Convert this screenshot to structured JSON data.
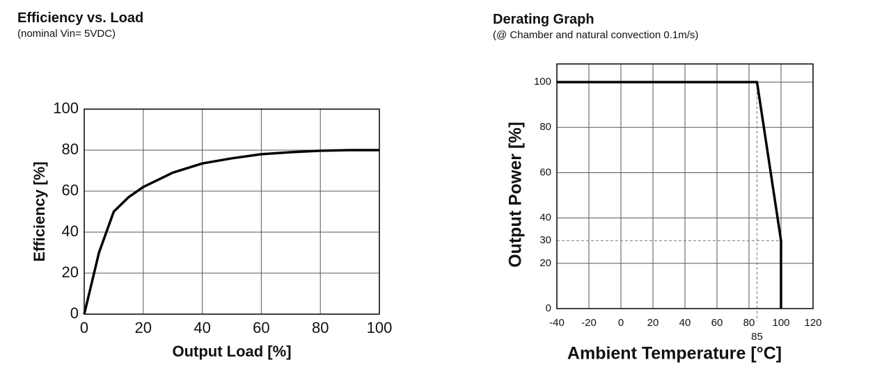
{
  "chart_data": [
    {
      "type": "line",
      "title": "Efficiency vs. Load",
      "subtitle": "(nominal Vin= 5VDC)",
      "x_label": "Output Load [%]",
      "y_label": "Efficiency [%]",
      "x": [
        0,
        5,
        10,
        15,
        20,
        30,
        40,
        50,
        60,
        70,
        80,
        90,
        100
      ],
      "series": [
        {
          "color": "#000000",
          "values": [
            0,
            30,
            50,
            57,
            62,
            69,
            73.5,
            76,
            78,
            79,
            79.7,
            80,
            80
          ]
        }
      ],
      "xlim": [
        0,
        100
      ],
      "xticks": [
        0,
        20,
        40,
        60,
        80,
        100
      ],
      "ylim": [
        0,
        100
      ],
      "yticks": [
        0,
        20,
        40,
        60,
        80,
        100
      ],
      "grid": true
    },
    {
      "type": "line",
      "title": "Derating Graph",
      "subtitle": "(@ Chamber and natural convection 0.1m/s)",
      "x_label": "Ambient Temperature [°C]",
      "y_label": "Output Power [%]",
      "x": [
        -40,
        85,
        100,
        100
      ],
      "series": [
        {
          "color": "#000000",
          "values": [
            100,
            100,
            30,
            0
          ]
        }
      ],
      "xlim": [
        -40,
        120
      ],
      "xticks": [
        -40,
        -20,
        0,
        20,
        40,
        60,
        80,
        100,
        120
      ],
      "ylim": [
        0,
        108
      ],
      "yticks": [
        0,
        20,
        30,
        40,
        60,
        80,
        100
      ],
      "grid": true,
      "x_ref": 85,
      "y_ref": 30
    }
  ]
}
